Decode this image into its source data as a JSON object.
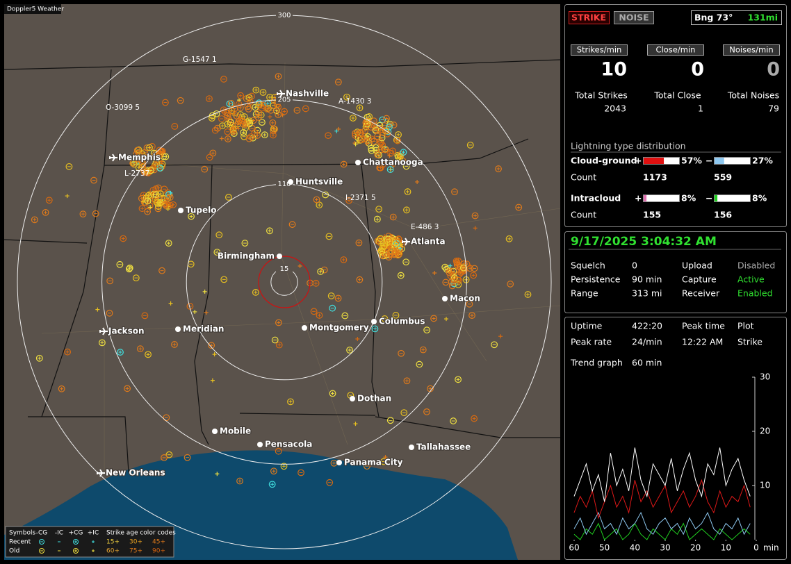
{
  "app_title": "Doppler5 Weather",
  "status": {
    "strike": "STRIKE",
    "noise": "NOISE",
    "bearing": "Bng 73°",
    "distance": "131mi"
  },
  "rates": [
    {
      "label": "Strikes/min",
      "value": 10
    },
    {
      "label": "Close/min",
      "value": 0
    },
    {
      "label": "Noises/min",
      "value": 0
    }
  ],
  "totals": [
    {
      "label": "Total Strikes",
      "value": 2043
    },
    {
      "label": "Total Close",
      "value": 1
    },
    {
      "label": "Total Noises",
      "value": 79
    }
  ],
  "distribution": {
    "title": "Lightning type distribution",
    "count_label": "Count",
    "rows": [
      {
        "name": "Cloud-ground",
        "pos_sign": "+",
        "neg_sign": "−",
        "pos_percent": {
          "value": 57,
          "label": "57%"
        },
        "neg_percent": {
          "value": 27,
          "label": "27%"
        },
        "pos_count": 1173,
        "neg_count": 559
      },
      {
        "name": "Intracloud",
        "pos_sign": "+",
        "neg_sign": "−",
        "pos_percent": {
          "value": 8,
          "label": "8%"
        },
        "neg_percent": {
          "value": 8,
          "label": "8%"
        },
        "pos_count": 155,
        "neg_count": 156
      }
    ]
  },
  "datetime": "9/17/2025 3:04:32 AM",
  "settings": [
    [
      "Squelch",
      0,
      "Upload",
      "Disabled"
    ],
    [
      "Persistence",
      "90 min",
      "Capture",
      "Active"
    ],
    [
      "Range",
      "313 mi",
      "Receiver",
      "Enabled"
    ]
  ],
  "stats": [
    [
      "Uptime",
      "422:20",
      "Peak time",
      "Plot"
    ],
    [
      "Peak rate",
      "24/min",
      "12:22 AM",
      "Strike"
    ],
    [
      "Trend graph",
      "60 min"
    ]
  ],
  "trend": {
    "xlim": [
      60,
      0
    ],
    "ylim": [
      0,
      30
    ],
    "yticks": [
      10,
      20,
      30
    ],
    "xticks": [
      60,
      50,
      40,
      30,
      20,
      10,
      0
    ],
    "x_unit": "min",
    "x": [
      60,
      58,
      56,
      54,
      52,
      50,
      48,
      46,
      44,
      42,
      40,
      38,
      36,
      34,
      32,
      30,
      28,
      26,
      24,
      22,
      20,
      18,
      16,
      14,
      12,
      10,
      8,
      6,
      4,
      2
    ],
    "series": [
      {
        "color": "#ffffff",
        "values": [
          8,
          11,
          14,
          9,
          12,
          7,
          16,
          10,
          13,
          9,
          17,
          11,
          8,
          14,
          12,
          10,
          15,
          9,
          13,
          16,
          11,
          8,
          14,
          12,
          17,
          10,
          13,
          15,
          11,
          8
        ]
      },
      {
        "color": "#e01818",
        "values": [
          5,
          8,
          6,
          9,
          4,
          7,
          10,
          6,
          8,
          5,
          11,
          7,
          9,
          6,
          8,
          10,
          5,
          7,
          9,
          6,
          8,
          11,
          7,
          5,
          9,
          6,
          8,
          7,
          10,
          6
        ]
      },
      {
        "color": "#8ec8f0",
        "values": [
          2,
          4,
          1,
          3,
          5,
          2,
          3,
          1,
          4,
          2,
          3,
          5,
          2,
          1,
          3,
          4,
          2,
          3,
          1,
          4,
          2,
          3,
          5,
          2,
          1,
          3,
          2,
          4,
          1,
          3
        ]
      },
      {
        "color": "#20d020",
        "values": [
          1,
          0,
          2,
          1,
          3,
          0,
          1,
          2,
          0,
          1,
          3,
          1,
          0,
          2,
          1,
          0,
          2,
          1,
          3,
          0,
          1,
          2,
          1,
          0,
          2,
          1,
          0,
          1,
          2,
          1
        ]
      }
    ]
  },
  "map": {
    "range_rings": [
      300,
      205,
      110,
      15
    ],
    "cities": [
      "Nashville",
      "Memphis",
      "Chattanooga",
      "Huntsville",
      "Tupelo",
      "Atlanta",
      "Birmingham",
      "Macon",
      "Jackson",
      "Meridian",
      "Montgomery",
      "Columbus",
      "Dothan",
      "Mobile",
      "Pensacola",
      "Tallahassee",
      "Panama City",
      "New Orleans"
    ],
    "detectors": [
      "G-1547 1",
      "O-3099 5",
      "A-1430 3",
      "L-2737",
      "I-2371 5",
      "E-486 3"
    ]
  },
  "legend": {
    "title": "Symbols",
    "columns": [
      "-CG",
      "-IC",
      "+CG",
      "+IC"
    ],
    "age_title": "Strike age color codes",
    "rows": [
      {
        "name": "Recent",
        "ages": [
          "15+",
          "30+",
          "45+"
        ]
      },
      {
        "name": "Old",
        "ages": [
          "60+",
          "75+",
          "90+"
        ]
      }
    ]
  }
}
